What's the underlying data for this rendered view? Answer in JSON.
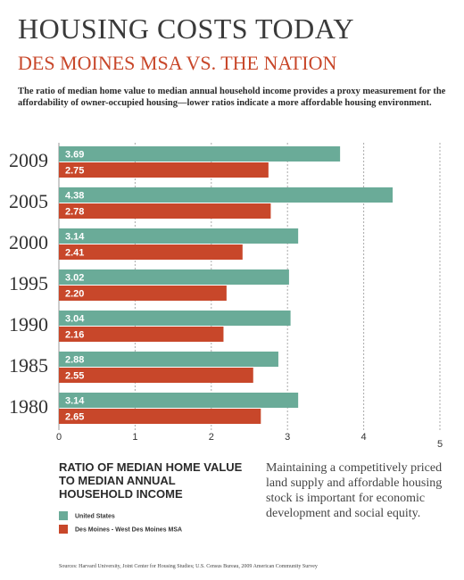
{
  "chart_data": {
    "type": "bar",
    "orientation": "horizontal",
    "title": "HOUSING COSTS TODAY",
    "subtitle": "DES MOINES MSA VS. THE NATION",
    "description": "The ratio of median home value to median annual household income provides a proxy measurement for the affordability of owner-occupied housing—lower ratios indicate a more affordable housing environment.",
    "measure_label": "RATIO OF MEDIAN HOME VALUE TO MEDIAN ANNUAL HOUSEHOLD INCOME",
    "note": "Maintaining a competitively priced land supply and affordable housing stock is important for economic development and social equity.",
    "sources": "Sources: Harvard University, Joint Center for Housing Studies; U.S. Census Bureau, 2009 American Community Survey",
    "categories": [
      "2009",
      "2005",
      "2000",
      "1995",
      "1990",
      "1985",
      "1980"
    ],
    "series": [
      {
        "name": "United States",
        "color": "#6aab98",
        "values": [
          3.69,
          4.38,
          3.14,
          3.02,
          3.04,
          2.88,
          3.14
        ],
        "value_labels": [
          "3.69",
          "4.38",
          "3.14",
          "3.02",
          "3.04",
          "2.88",
          "3.14"
        ]
      },
      {
        "name": "Des Moines - West Des Moines MSA",
        "color": "#c8472a",
        "values": [
          2.75,
          2.78,
          2.41,
          2.2,
          2.16,
          2.55,
          2.65
        ],
        "value_labels": [
          "2.75",
          "2.78",
          "2.41",
          "2.20",
          "2.16",
          "2.55",
          "2.65"
        ]
      }
    ],
    "xlim": [
      0,
      5
    ],
    "xticks": [
      0,
      1,
      2,
      3,
      4,
      5
    ],
    "grid": true
  }
}
